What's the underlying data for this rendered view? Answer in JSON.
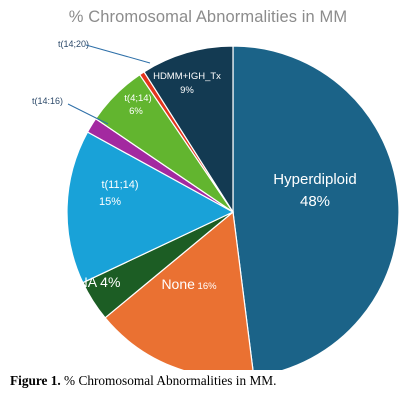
{
  "chart_data": {
    "type": "pie",
    "title": "% Chromosomal Abnormalities in MM",
    "slices": [
      {
        "name": "Hyperdiploid",
        "value": 48,
        "label": "Hyperdiploid",
        "value_label": "48%",
        "color": "#1b6388",
        "text_color": "#ffffff"
      },
      {
        "name": "None",
        "value": 16,
        "label": "None",
        "value_label": "16%",
        "color": "#ea7132",
        "text_color": "#ffffff"
      },
      {
        "name": "NA",
        "value": 4,
        "label": "NA",
        "value_label": "4%",
        "color": "#1c5d24",
        "text_color": "#ffffff"
      },
      {
        "name": "t(11;14)",
        "value": 15,
        "label": "t(11;14)",
        "value_label": "15%",
        "color": "#19a2d8",
        "text_color": "#ffffff"
      },
      {
        "name": "t(14:16)",
        "value": 1.5,
        "label": "t(14:16)",
        "value_label": "",
        "color": "#a329a0",
        "text_color": "#2d4a6a"
      },
      {
        "name": "t(4;14)",
        "value": 6,
        "label": "t(4;14)",
        "value_label": "6%",
        "color": "#62b52f",
        "text_color": "#ffffff"
      },
      {
        "name": "t(14;20)",
        "value": 0.5,
        "label": "t(14;20)",
        "value_label": "",
        "color": "#e3341d",
        "text_color": "#2d4a6a"
      },
      {
        "name": "HDMM+IGH_Tx",
        "value": 9,
        "label": "HDMM+IGH_Tx",
        "value_label": "9%",
        "color": "#133a52",
        "text_color": "#ffffff"
      }
    ]
  },
  "caption": {
    "label": "Figure 1.",
    "text": " % Chromosomal Abnormalities in MM."
  }
}
